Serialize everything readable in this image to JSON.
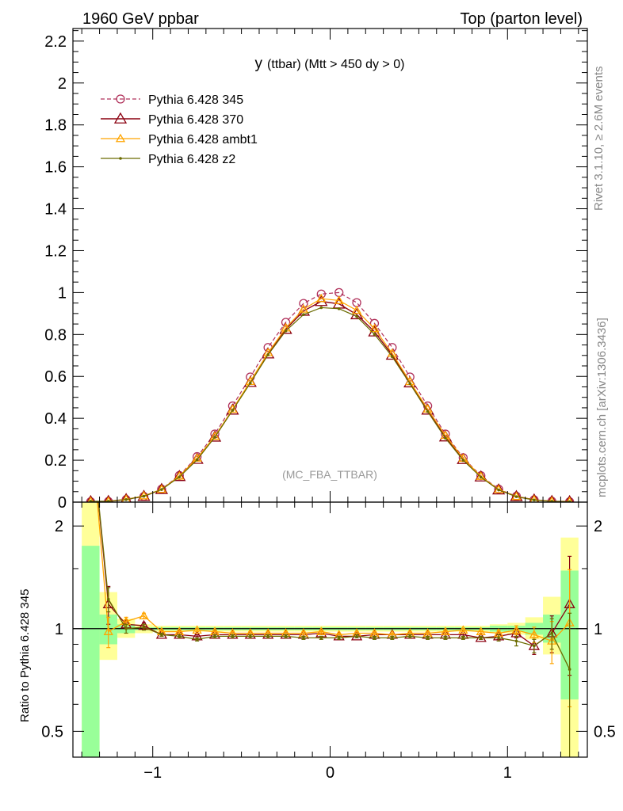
{
  "header": {
    "left": "1960 GeV ppbar",
    "right": "Top (parton level)"
  },
  "side_text": {
    "rivet": "Rivet 3.1.10, ≥ 2.6M events",
    "mcplots": "mcplots.cern.ch [arXiv:1306.3436]"
  },
  "colors": {
    "p345": "#b0305a",
    "p370": "#8b0010",
    "ambt1": "#ffa500",
    "z2": "#6b6b00",
    "band_green": "#99ff99",
    "band_yellow": "#ffff99"
  },
  "chart_data": [
    {
      "type": "line",
      "title": "y (ttbar) (Mtt > 450 dy > 0)",
      "title_main": "y",
      "title_rest": "(ttbar) (Mtt > 450 dy > 0)",
      "watermark": "(MC_FBA_TTBAR)",
      "xlim": [
        -1.45,
        1.45
      ],
      "ylim": [
        0,
        2.26
      ],
      "yticks": [
        0,
        0.2,
        0.4,
        0.6,
        0.8,
        1,
        1.2,
        1.4,
        1.6,
        1.8,
        2,
        2.2
      ],
      "ytick_labels": [
        "0",
        "0.2",
        "0.4",
        "0.6",
        "0.8",
        "1",
        "1.2",
        "1.4",
        "1.6",
        "1.8",
        "2",
        "2.2"
      ],
      "legend_position": "top-left",
      "x": [
        -1.35,
        -1.25,
        -1.15,
        -1.05,
        -0.95,
        -0.85,
        -0.75,
        -0.65,
        -0.55,
        -0.45,
        -0.35,
        -0.25,
        -0.15,
        -0.05,
        0.05,
        0.15,
        0.25,
        0.35,
        0.45,
        0.55,
        0.65,
        0.75,
        0.85,
        0.95,
        1.05,
        1.15,
        1.25,
        1.35
      ],
      "series": [
        {
          "name": "Pythia 6.428 345",
          "key": "p345",
          "marker": "circle",
          "dashed": true,
          "values": [
            0.002,
            0.003,
            0.012,
            0.027,
            0.062,
            0.127,
            0.217,
            0.325,
            0.459,
            0.597,
            0.738,
            0.858,
            0.948,
            0.993,
            1.0,
            0.952,
            0.853,
            0.738,
            0.597,
            0.459,
            0.325,
            0.212,
            0.126,
            0.062,
            0.028,
            0.011,
            0.004,
            0.002
          ]
        },
        {
          "name": "Pythia 6.428 370",
          "key": "p370",
          "marker": "triangle",
          "dashed": false,
          "values": [
            0.003,
            0.004,
            0.013,
            0.028,
            0.061,
            0.123,
            0.205,
            0.311,
            0.44,
            0.572,
            0.708,
            0.825,
            0.912,
            0.958,
            0.946,
            0.895,
            0.813,
            0.702,
            0.57,
            0.44,
            0.312,
            0.204,
            0.121,
            0.059,
            0.027,
            0.011,
            0.004,
            0.003
          ]
        },
        {
          "name": "Pythia 6.428 ambt1",
          "key": "ambt1",
          "marker": "triangle-small",
          "dashed": false,
          "values": [
            0.003,
            0.004,
            0.013,
            0.03,
            0.061,
            0.124,
            0.21,
            0.314,
            0.443,
            0.576,
            0.713,
            0.831,
            0.921,
            0.971,
            0.962,
            0.915,
            0.828,
            0.71,
            0.575,
            0.444,
            0.318,
            0.209,
            0.123,
            0.06,
            0.027,
            0.011,
            0.004,
            0.002
          ]
        },
        {
          "name": "Pythia 6.428 z2",
          "key": "z2",
          "marker": "dot",
          "dashed": false,
          "values": [
            0.004,
            0.004,
            0.012,
            0.028,
            0.06,
            0.12,
            0.202,
            0.31,
            0.438,
            0.568,
            0.703,
            0.817,
            0.895,
            0.928,
            0.923,
            0.886,
            0.801,
            0.694,
            0.565,
            0.432,
            0.305,
            0.2,
            0.119,
            0.058,
            0.026,
            0.01,
            0.004,
            0.002
          ]
        }
      ]
    },
    {
      "type": "line",
      "ylabel": "Ratio to Pythia 6.428 345",
      "xlim": [
        -1.45,
        1.45
      ],
      "ylim": [
        0.42,
        2.35
      ],
      "log_y": true,
      "xticks": [
        -1,
        0,
        1
      ],
      "xtick_labels": [
        "−1",
        "0",
        "1"
      ],
      "yticks": [
        0.5,
        1,
        2
      ],
      "ytick_labels": [
        "0.5",
        "1",
        "2"
      ],
      "reference_line": 1,
      "bands": {
        "x_edges": [
          -1.4,
          -1.3,
          -1.2,
          -1.1,
          -1.0,
          -0.9,
          -0.8,
          -0.7,
          -0.6,
          -0.5,
          -0.4,
          -0.3,
          -0.2,
          -0.1,
          0.0,
          0.1,
          0.2,
          0.3,
          0.4,
          0.5,
          0.6,
          0.7,
          0.8,
          0.9,
          1.0,
          1.1,
          1.2,
          1.3,
          1.4
        ],
        "green_low": [
          0.42,
          0.9,
          0.97,
          0.99,
          0.99,
          0.99,
          0.99,
          0.99,
          0.99,
          0.99,
          0.99,
          0.99,
          0.99,
          0.99,
          0.99,
          0.99,
          0.99,
          0.99,
          0.99,
          0.99,
          0.99,
          0.99,
          0.99,
          0.98,
          0.98,
          0.96,
          0.91,
          0.62
        ],
        "green_high": [
          1.75,
          1.1,
          1.03,
          1.01,
          1.01,
          1.01,
          1.01,
          1.01,
          1.01,
          1.01,
          1.01,
          1.01,
          1.01,
          1.01,
          1.01,
          1.01,
          1.01,
          1.01,
          1.01,
          1.01,
          1.01,
          1.01,
          1.01,
          1.02,
          1.02,
          1.04,
          1.1,
          1.48
        ],
        "yellow_low": [
          0.42,
          0.81,
          0.94,
          0.97,
          0.98,
          0.98,
          0.98,
          0.98,
          0.98,
          0.98,
          0.98,
          0.98,
          0.98,
          0.98,
          0.98,
          0.98,
          0.98,
          0.98,
          0.98,
          0.98,
          0.98,
          0.98,
          0.98,
          0.97,
          0.96,
          0.93,
          0.84,
          0.42
        ],
        "yellow_high": [
          2.35,
          1.28,
          1.07,
          1.03,
          1.02,
          1.02,
          1.02,
          1.02,
          1.02,
          1.02,
          1.02,
          1.02,
          1.02,
          1.02,
          1.02,
          1.02,
          1.02,
          1.02,
          1.02,
          1.02,
          1.02,
          1.02,
          1.02,
          1.03,
          1.04,
          1.08,
          1.24,
          1.85
        ]
      },
      "series": [
        {
          "name": "Pythia 6.428 370",
          "key": "p370",
          "marker": "triangle",
          "values": [
            4.0,
            1.18,
            1.03,
            1.02,
            0.96,
            0.96,
            0.95,
            0.96,
            0.96,
            0.96,
            0.96,
            0.96,
            0.96,
            0.97,
            0.95,
            0.95,
            0.96,
            0.96,
            0.96,
            0.96,
            0.96,
            0.96,
            0.94,
            0.95,
            0.97,
            0.89,
            0.97,
            1.18
          ],
          "errors": [
            0.0,
            0.15,
            0.03,
            0.02,
            0.01,
            0.01,
            0.01,
            0.01,
            0.01,
            0.01,
            0.01,
            0.01,
            0.01,
            0.01,
            0.01,
            0.01,
            0.01,
            0.01,
            0.01,
            0.01,
            0.01,
            0.01,
            0.01,
            0.02,
            0.03,
            0.05,
            0.12,
            0.45
          ]
        },
        {
          "name": "Pythia 6.428 ambt1",
          "key": "ambt1",
          "marker": "triangle-small",
          "values": [
            4.0,
            0.98,
            1.05,
            1.09,
            0.98,
            0.98,
            0.99,
            0.98,
            0.97,
            0.97,
            0.97,
            0.97,
            0.97,
            0.98,
            0.96,
            0.97,
            0.97,
            0.96,
            0.97,
            0.97,
            0.98,
            0.99,
            0.98,
            0.97,
            0.99,
            0.96,
            0.92,
            1.04
          ],
          "errors": [
            0.0,
            0.1,
            0.03,
            0.02,
            0.01,
            0.01,
            0.01,
            0.01,
            0.01,
            0.01,
            0.01,
            0.01,
            0.01,
            0.01,
            0.01,
            0.01,
            0.01,
            0.01,
            0.01,
            0.01,
            0.01,
            0.01,
            0.01,
            0.02,
            0.03,
            0.05,
            0.13,
            0.45
          ]
        },
        {
          "name": "Pythia 6.428 z2",
          "key": "z2",
          "marker": "dot",
          "values": [
            4.0,
            1.22,
            1.0,
            1.01,
            0.96,
            0.95,
            0.93,
            0.95,
            0.95,
            0.95,
            0.95,
            0.95,
            0.94,
            0.94,
            0.94,
            0.95,
            0.94,
            0.94,
            0.95,
            0.94,
            0.94,
            0.94,
            0.94,
            0.94,
            0.92,
            0.89,
            0.97,
            0.76
          ],
          "errors": [
            0.0,
            0.1,
            0.03,
            0.02,
            0.01,
            0.01,
            0.01,
            0.01,
            0.01,
            0.01,
            0.01,
            0.01,
            0.01,
            0.01,
            0.01,
            0.01,
            0.01,
            0.01,
            0.01,
            0.01,
            0.01,
            0.01,
            0.01,
            0.02,
            0.03,
            0.04,
            0.1,
            0.35
          ]
        }
      ]
    }
  ]
}
